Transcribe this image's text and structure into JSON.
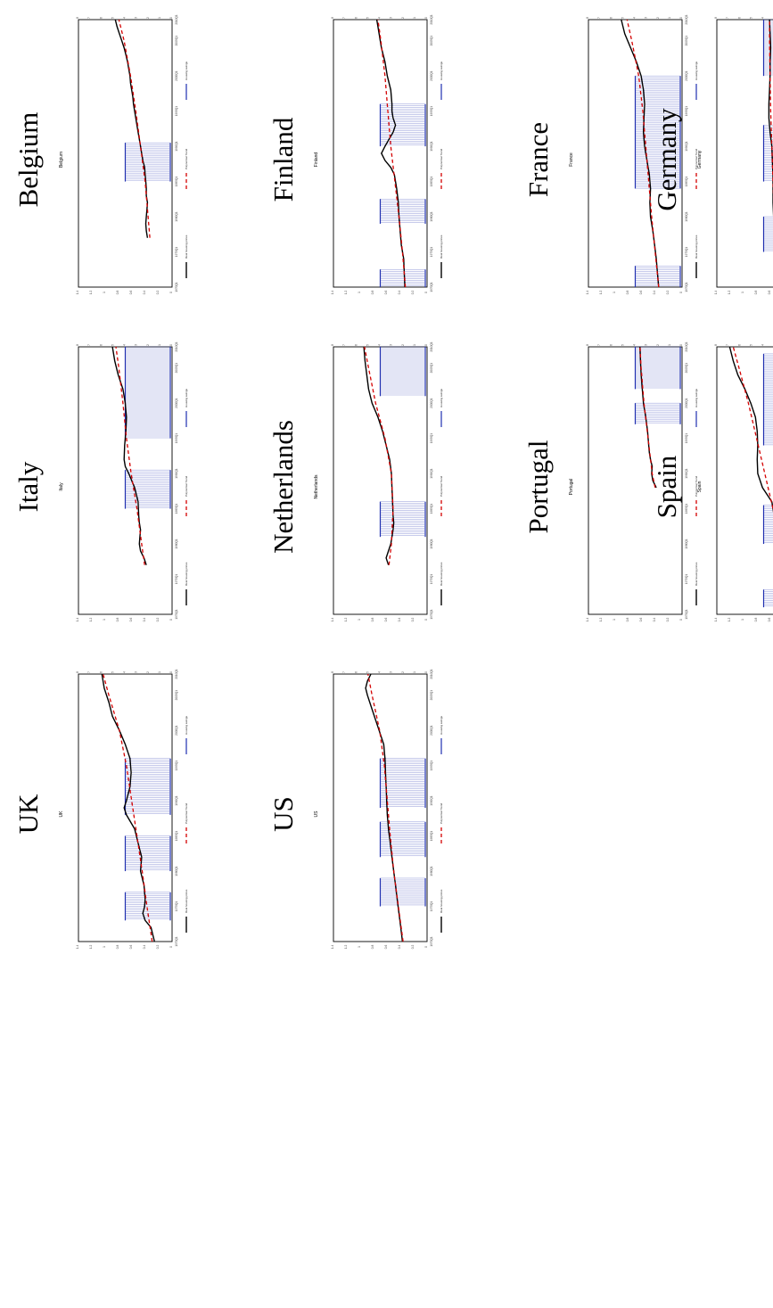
{
  "colors": {
    "price": "#000000",
    "trend": "#d40000",
    "housing": "#1f2fb0"
  },
  "legend": {
    "price": "Real housing prices",
    "trend": "Polynomial Trend",
    "housing": "Housing swings"
  },
  "y_left_ticks": [
    "0",
    "1",
    "2",
    "3",
    "4",
    "5",
    "6",
    "7",
    "8"
  ],
  "y_right_ticks": [
    "1.4",
    "1.2",
    "1",
    "0.8",
    "0.6",
    "0.4",
    "0.2",
    "0"
  ],
  "x_ticks": [
    "1970Q1",
    "1975Q1",
    "1980Q1",
    "1985Q1",
    "1990Q1",
    "1995Q1",
    "2000Q1",
    "2005Q1",
    "2010Q1"
  ],
  "chart_data": [
    {
      "type": "line",
      "title": "Belgium",
      "subtitle": "Belgium",
      "x_range": [
        1970,
        2008
      ],
      "ylim": [
        0,
        8
      ],
      "series": [
        {
          "name": "Real housing prices",
          "x": [
            1977,
            1978,
            1979,
            1980,
            1981,
            1982,
            1983,
            1984,
            1985,
            1986,
            1987,
            1988,
            1989,
            1990,
            1991,
            1992,
            1993,
            1994,
            1995,
            1996,
            1997,
            1998,
            1999,
            2000,
            2001,
            2002,
            2003,
            2004,
            2005,
            2006,
            2007,
            2008
          ],
          "values": [
            2.1,
            2.2,
            2.25,
            2.2,
            2.15,
            2.1,
            2.2,
            2.2,
            2.25,
            2.3,
            2.35,
            2.5,
            2.6,
            2.7,
            2.8,
            2.9,
            3.0,
            3.1,
            3.2,
            3.3,
            3.35,
            3.45,
            3.55,
            3.6,
            3.7,
            3.8,
            3.95,
            4.1,
            4.3,
            4.5,
            4.7,
            4.85
          ]
        },
        {
          "name": "Polynomial Trend",
          "x": [
            1977,
            1980,
            1985,
            1990,
            1995,
            2000,
            2005,
            2008
          ],
          "values": [
            1.9,
            2.05,
            2.3,
            2.7,
            3.1,
            3.55,
            4.1,
            4.55
          ]
        }
      ],
      "housing_swings": [
        [
          1985,
          1990.5
        ]
      ]
    },
    {
      "type": "line",
      "title": "Finland",
      "subtitle": "Finland",
      "x_range": [
        1970,
        2008
      ],
      "ylim": [
        0,
        8
      ],
      "series": [
        {
          "name": "Real housing prices",
          "x": [
            1970,
            1972,
            1974,
            1976,
            1978,
            1980,
            1982,
            1984,
            1986,
            1987,
            1988,
            1989,
            1990,
            1991,
            1992,
            1993,
            1994,
            1995,
            1996,
            1998,
            2000,
            2002,
            2004,
            2006,
            2008
          ],
          "values": [
            1.9,
            1.95,
            2.0,
            2.2,
            2.3,
            2.4,
            2.45,
            2.6,
            2.8,
            3.1,
            3.6,
            3.9,
            3.6,
            3.25,
            2.9,
            2.7,
            2.9,
            3.0,
            3.0,
            3.1,
            3.4,
            3.6,
            3.9,
            4.1,
            4.3
          ]
        },
        {
          "name": "Polynomial Trend",
          "x": [
            1970,
            1975,
            1980,
            1985,
            1990,
            1995,
            2000,
            2005,
            2008
          ],
          "values": [
            1.85,
            2.1,
            2.4,
            2.75,
            3.1,
            3.35,
            3.6,
            3.95,
            4.2
          ]
        }
      ],
      "housing_swings": [
        [
          1970,
          1972.5
        ],
        [
          1979,
          1982.5
        ],
        [
          1990,
          1996
        ]
      ]
    },
    {
      "type": "line",
      "title": "France",
      "subtitle": "France",
      "x_range": [
        1970,
        2008
      ],
      "ylim": [
        0,
        8
      ],
      "series": [
        {
          "name": "Real housing prices",
          "x": [
            1970,
            1972,
            1974,
            1976,
            1978,
            1980,
            1982,
            1984,
            1986,
            1988,
            1990,
            1992,
            1994,
            1996,
            1998,
            2000,
            2002,
            2004,
            2006,
            2008
          ],
          "values": [
            2.0,
            2.1,
            2.2,
            2.35,
            2.5,
            2.7,
            2.75,
            2.7,
            2.8,
            3.0,
            3.2,
            3.3,
            3.25,
            3.2,
            3.3,
            3.5,
            3.9,
            4.4,
            4.9,
            5.2
          ]
        },
        {
          "name": "Polynomial Trend",
          "x": [
            1970,
            1975,
            1980,
            1985,
            1990,
            1995,
            2000,
            2005,
            2008
          ],
          "values": [
            2.0,
            2.3,
            2.6,
            2.85,
            3.1,
            3.35,
            3.7,
            4.3,
            4.7
          ]
        }
      ],
      "housing_swings": [
        [
          1970,
          1973
        ],
        [
          1984,
          2000
        ]
      ]
    },
    {
      "type": "line",
      "title": "Germany",
      "subtitle": "Germany",
      "x_range": [
        1970,
        2008
      ],
      "ylim": [
        0,
        8
      ],
      "series": [
        {
          "name": "Real housing prices",
          "x": [
            1970,
            1972,
            1974,
            1976,
            1978,
            1980,
            1982,
            1984,
            1986,
            1988,
            1990,
            1992,
            1994,
            1996,
            1998,
            2000,
            2002,
            2004,
            2006,
            2008
          ],
          "values": [
            2.7,
            2.8,
            2.9,
            3.0,
            3.05,
            3.15,
            3.2,
            3.2,
            3.2,
            3.25,
            3.3,
            3.45,
            3.55,
            3.55,
            3.5,
            3.45,
            3.45,
            3.4,
            3.45,
            3.5
          ]
        },
        {
          "name": "Polynomial Trend",
          "x": [
            1970,
            1975,
            1980,
            1985,
            1990,
            1995,
            2000,
            2005,
            2008
          ],
          "values": [
            2.75,
            2.95,
            3.1,
            3.2,
            3.3,
            3.4,
            3.45,
            3.5,
            3.5
          ]
        }
      ],
      "housing_swings": [
        [
          1975,
          1980
        ],
        [
          1985,
          1993
        ],
        [
          2000,
          2008
        ]
      ]
    },
    {
      "type": "line",
      "title": "Italy",
      "subtitle": "Italy",
      "x_range": [
        1970,
        2008
      ],
      "ylim": [
        0,
        8
      ],
      "series": [
        {
          "name": "Real housing prices",
          "x": [
            1977,
            1978,
            1979,
            1980,
            1981,
            1982,
            1983,
            1984,
            1986,
            1988,
            1990,
            1991,
            1992,
            1994,
            1996,
            1998,
            2000,
            2002,
            2004,
            2006,
            2008
          ],
          "values": [
            2.2,
            2.4,
            2.7,
            2.8,
            2.75,
            2.7,
            2.8,
            2.85,
            2.9,
            3.2,
            3.7,
            4.0,
            4.1,
            4.05,
            3.95,
            3.9,
            4.0,
            4.2,
            4.6,
            4.9,
            5.1
          ]
        },
        {
          "name": "Polynomial Trend",
          "x": [
            1977,
            1980,
            1985,
            1990,
            1995,
            2000,
            2005,
            2008
          ],
          "values": [
            2.35,
            2.6,
            3.0,
            3.5,
            3.9,
            4.2,
            4.55,
            4.8
          ]
        }
      ],
      "housing_swings": [
        [
          1985,
          1990.5
        ],
        [
          1995,
          2008
        ]
      ]
    },
    {
      "type": "line",
      "title": "Netherlands",
      "subtitle": "Netherlands",
      "x_range": [
        1970,
        2008
      ],
      "ylim": [
        0,
        8
      ],
      "series": [
        {
          "name": "Real housing prices",
          "x": [
            1977,
            1978,
            1979,
            1980,
            1981,
            1982,
            1983,
            1984,
            1986,
            1988,
            1990,
            1992,
            1994,
            1996,
            1998,
            2000,
            2002,
            2004,
            2006,
            2008
          ],
          "values": [
            3.3,
            3.5,
            3.3,
            3.1,
            3.0,
            2.9,
            2.85,
            2.9,
            2.95,
            3.0,
            3.05,
            3.2,
            3.5,
            3.8,
            4.2,
            4.7,
            5.0,
            5.15,
            5.3,
            5.4
          ]
        },
        {
          "name": "Polynomial Trend",
          "x": [
            1977,
            1980,
            1985,
            1990,
            1995,
            2000,
            2005,
            2008
          ],
          "values": [
            3.25,
            3.05,
            2.9,
            3.05,
            3.6,
            4.4,
            5.0,
            5.35
          ]
        }
      ],
      "housing_swings": [
        [
          1981,
          1986
        ],
        [
          2001,
          2008
        ]
      ]
    },
    {
      "type": "line",
      "title": "Portugal",
      "subtitle": "Portugal",
      "x_range": [
        1970,
        2008
      ],
      "ylim": [
        0,
        8
      ],
      "series": [
        {
          "name": "Real housing prices",
          "x": [
            1988,
            1989,
            1990,
            1991,
            1992,
            1993,
            1994,
            1996,
            1998,
            2000,
            2002,
            2004,
            2006,
            2008
          ],
          "values": [
            2.2,
            2.5,
            2.6,
            2.55,
            2.7,
            2.8,
            2.85,
            2.95,
            3.1,
            3.3,
            3.4,
            3.5,
            3.55,
            3.6
          ]
        },
        {
          "name": "Polynomial Trend",
          "x": [
            1988,
            1990,
            1995,
            2000,
            2005,
            2008
          ],
          "values": [
            2.3,
            2.55,
            2.9,
            3.25,
            3.5,
            3.6
          ]
        }
      ],
      "housing_swings": [
        [
          1997,
          2000
        ],
        [
          2002,
          2008
        ]
      ]
    },
    {
      "type": "line",
      "title": "Spain",
      "subtitle": "Spain",
      "x_range": [
        1970,
        2008
      ],
      "ylim": [
        0,
        8
      ],
      "series": [
        {
          "name": "Real housing prices",
          "x": [
            1971,
            1972,
            1973,
            1974,
            1975,
            1976,
            1977,
            1978,
            1979,
            1980,
            1981,
            1982,
            1983,
            1984,
            1986,
            1988,
            1990,
            1992,
            1994,
            1996,
            1998,
            2000,
            2002,
            2004,
            2006,
            2008
          ],
          "values": [
            1.9,
            1.95,
            2.1,
            2.25,
            2.2,
            2.5,
            2.55,
            2.7,
            2.75,
            2.8,
            2.9,
            2.95,
            2.9,
            3.1,
            3.3,
            4.1,
            4.5,
            4.55,
            4.5,
            4.55,
            4.7,
            5.1,
            5.6,
            6.2,
            6.6,
            6.9
          ]
        },
        {
          "name": "Polynomial Trend",
          "x": [
            1971,
            1975,
            1980,
            1985,
            1990,
            1995,
            2000,
            2005,
            2008
          ],
          "values": [
            2.0,
            2.3,
            2.65,
            3.2,
            3.9,
            4.6,
            5.3,
            6.1,
            6.6
          ]
        }
      ],
      "housing_swings": [
        [
          1971,
          1973.5
        ],
        [
          1980,
          1985.5
        ],
        [
          1994,
          2007
        ]
      ]
    },
    {
      "type": "line",
      "title": "UK",
      "subtitle": "UK",
      "x_range": [
        1970,
        2008
      ],
      "ylim": [
        0,
        8
      ],
      "series": [
        {
          "name": "Real housing prices",
          "x": [
            1970,
            1971,
            1972,
            1973,
            1974,
            1975,
            1976,
            1978,
            1980,
            1982,
            1984,
            1986,
            1988,
            1989,
            1990,
            1992,
            1994,
            1996,
            1998,
            2000,
            2002,
            2004,
            2006,
            2008
          ],
          "values": [
            1.5,
            1.65,
            1.8,
            2.3,
            2.5,
            2.35,
            2.3,
            2.4,
            2.7,
            2.6,
            2.9,
            3.2,
            3.9,
            4.1,
            3.9,
            3.6,
            3.5,
            3.6,
            4.0,
            4.5,
            5.1,
            5.4,
            5.8,
            6.0
          ]
        },
        {
          "name": "Polynomial Trend",
          "x": [
            1970,
            1975,
            1980,
            1985,
            1990,
            1995,
            2000,
            2005,
            2008
          ],
          "values": [
            1.7,
            2.15,
            2.55,
            3.0,
            3.45,
            3.9,
            4.5,
            5.4,
            5.9
          ]
        }
      ],
      "housing_swings": [
        [
          1973,
          1977
        ],
        [
          1980,
          1985
        ],
        [
          1988,
          1996
        ]
      ]
    },
    {
      "type": "line",
      "title": "US",
      "subtitle": "US",
      "x_range": [
        1970,
        2008
      ],
      "ylim": [
        0,
        8
      ],
      "series": [
        {
          "name": "Real housing prices",
          "x": [
            1970,
            1972,
            1974,
            1976,
            1978,
            1980,
            1982,
            1984,
            1986,
            1988,
            1990,
            1992,
            1994,
            1996,
            1998,
            2000,
            2002,
            2004,
            2005,
            2006,
            2007,
            2008
          ],
          "values": [
            2.1,
            2.25,
            2.4,
            2.55,
            2.7,
            2.85,
            3.0,
            3.15,
            3.3,
            3.4,
            3.45,
            3.5,
            3.55,
            3.6,
            3.7,
            4.1,
            4.5,
            4.9,
            5.1,
            5.25,
            5.1,
            4.8
          ]
        },
        {
          "name": "Polynomial Trend",
          "x": [
            1970,
            1975,
            1980,
            1985,
            1990,
            1995,
            2000,
            2005,
            2008
          ],
          "values": [
            2.05,
            2.45,
            2.85,
            3.15,
            3.4,
            3.65,
            4.05,
            4.7,
            5.05
          ]
        }
      ],
      "housing_swings": [
        [
          1975,
          1979
        ],
        [
          1982,
          1987
        ],
        [
          1989,
          1996
        ]
      ]
    }
  ]
}
